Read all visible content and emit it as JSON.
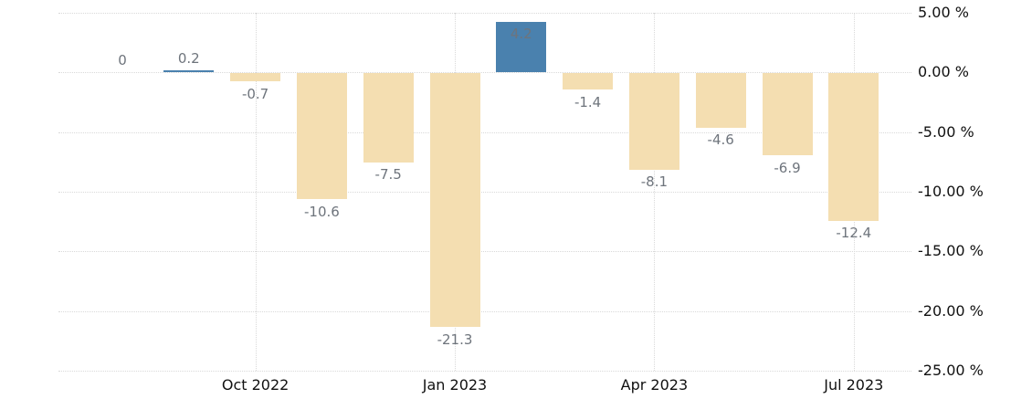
{
  "chart_data": {
    "type": "bar",
    "title": "",
    "unit": "%",
    "categories": [
      "Aug 2022",
      "Sep 2022",
      "Oct 2022",
      "Nov 2022",
      "Dec 2022",
      "Jan 2023",
      "Feb 2023",
      "Mar 2023",
      "Apr 2023",
      "May 2023",
      "Jun 2023",
      "Jul 2023"
    ],
    "values": [
      0,
      0.2,
      -0.7,
      -10.6,
      -7.5,
      -21.3,
      4.2,
      -1.4,
      -8.1,
      -4.6,
      -6.9,
      -12.4
    ],
    "bar_labels": [
      "0",
      "0.2",
      "-0.7",
      "-10.6",
      "-7.5",
      "-21.3",
      "4.2",
      "-1.4",
      "-8.1",
      "-4.6",
      "-6.9",
      "-12.4"
    ],
    "x_tick_labels": [
      "Oct 2022",
      "Jan 2023",
      "Apr 2023",
      "Jul 2023"
    ],
    "x_tick_month_indices": [
      2,
      5,
      8,
      11
    ],
    "y_tick_labels": [
      "5.00 %",
      "0.00 %",
      "-5.00 %",
      "-10.00 %",
      "-15.00 %",
      "-20.00 %",
      "-25.00 %"
    ],
    "y_tick_values": [
      5,
      0,
      -5,
      -10,
      -15,
      -20,
      -25
    ],
    "ylim": [
      -25,
      5
    ],
    "grid": "dotted",
    "legend": "none",
    "colors": {
      "positive_bar": "#4a81ae",
      "negative_bar": "#f4deb1",
      "value_label": "#6e747c",
      "axis_text": "#111111",
      "gridline": "#d9d9d9",
      "background": "#ffffff"
    }
  }
}
